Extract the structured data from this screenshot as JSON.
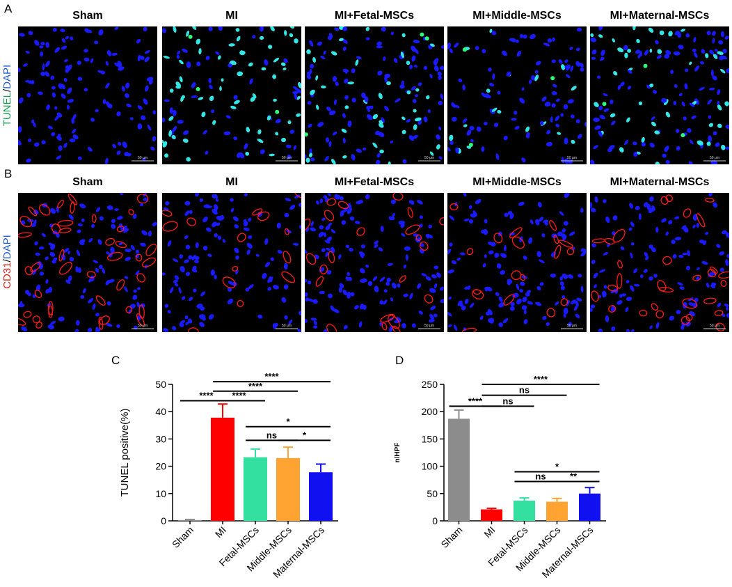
{
  "panelA": {
    "letter": "A",
    "stain_parts": [
      "TUNEL",
      "/",
      "DAPI"
    ],
    "stain_colors": [
      "#1a9c52",
      "#000000",
      "#1e5bd8"
    ],
    "columns": [
      "Sham",
      "MI",
      "MI+Fetal-MSCs",
      "MI+Middle-MSCs",
      "MI+Maternal-MSCs"
    ],
    "scale_bar": "50 μm"
  },
  "panelB": {
    "letter": "B",
    "stain_parts": [
      "CD31",
      "/",
      "DAPI"
    ],
    "stain_colors": [
      "#e0201a",
      "#000000",
      "#1e5bd8"
    ],
    "columns": [
      "Sham",
      "MI",
      "MI+Fetal-MSCs",
      "MI+Middle-MSCs",
      "MI+Maternal-MSCs"
    ],
    "scale_bar": "50 μm"
  },
  "colors": {
    "nuclei": "#1a1aff",
    "tunel": "#33e6e6",
    "tunel_bright": "#2bff7a",
    "vessel": "#ff1a1a",
    "sham": "#8c8c8c",
    "mi": "#ff0000",
    "fetal": "#33e0a0",
    "middle": "#ffa333",
    "maternal": "#1010f0"
  },
  "chart_data": [
    {
      "panel": "C",
      "type": "bar",
      "ylabel": "TUNEL positive(%)",
      "ylim": [
        0,
        50
      ],
      "yticks": [
        0,
        10,
        20,
        30,
        40,
        50
      ],
      "categories": [
        "Sham",
        "MI",
        "Fetal-MSCs",
        "Middle-MSCs",
        "Maternal-MSCs"
      ],
      "values": [
        0.3,
        37.8,
        23.3,
        23.0,
        17.8
      ],
      "errors": [
        0.2,
        5.0,
        3.0,
        4.0,
        3.0
      ],
      "bar_colors": [
        "#8c8c8c",
        "#ff0000",
        "#33e0a0",
        "#ffa333",
        "#1010f0"
      ],
      "significance": [
        {
          "from": 0,
          "to": 1,
          "y": 44,
          "label": "****"
        },
        {
          "from": 1,
          "to": 2,
          "y": 44,
          "label": "****"
        },
        {
          "from": 1,
          "to": 3,
          "y": 47.5,
          "label": "****"
        },
        {
          "from": 1,
          "to": 4,
          "y": 51,
          "label": "****"
        },
        {
          "from": 2,
          "to": 3,
          "y": 29.5,
          "label": "ns"
        },
        {
          "from": 3,
          "to": 4,
          "y": 29.5,
          "label": "*"
        },
        {
          "from": 2,
          "to": 4,
          "y": 34.5,
          "label": "*"
        }
      ]
    },
    {
      "panel": "D",
      "type": "bar",
      "ylabel": "n/HPF",
      "ylim": [
        0,
        250
      ],
      "yticks": [
        0,
        50,
        100,
        150,
        200,
        250
      ],
      "categories": [
        "Sham",
        "MI",
        "Fetal-MSCs",
        "Middle-MSCs",
        "Maternal-MSCs"
      ],
      "values": [
        187,
        21,
        37,
        35,
        50
      ],
      "errors": [
        16,
        2,
        5,
        6,
        11
      ],
      "bar_colors": [
        "#8c8c8c",
        "#ff0000",
        "#33e0a0",
        "#ffa333",
        "#1010f0"
      ],
      "significance": [
        {
          "from": 0,
          "to": 1,
          "y": 210,
          "label": "****"
        },
        {
          "from": 1,
          "to": 2,
          "y": 210,
          "label": "ns"
        },
        {
          "from": 1,
          "to": 3,
          "y": 230,
          "label": "ns"
        },
        {
          "from": 1,
          "to": 4,
          "y": 250,
          "label": "****"
        },
        {
          "from": 2,
          "to": 3,
          "y": 72,
          "label": "ns"
        },
        {
          "from": 3,
          "to": 4,
          "y": 72,
          "label": "**"
        },
        {
          "from": 2,
          "to": 4,
          "y": 90,
          "label": "*"
        }
      ]
    }
  ]
}
